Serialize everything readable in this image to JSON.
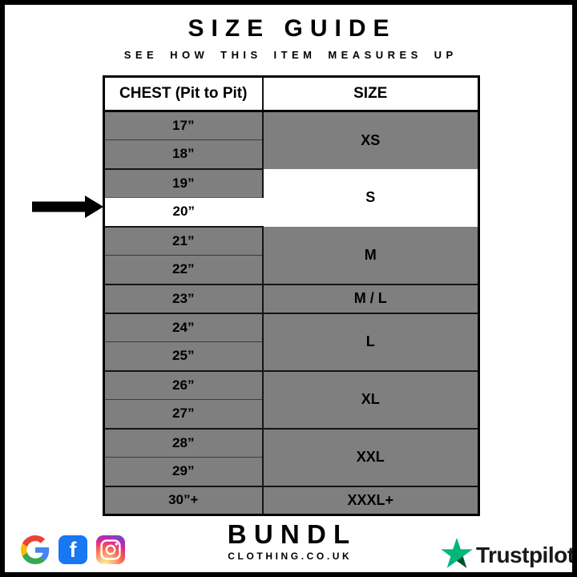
{
  "header": {
    "title": "SIZE GUIDE",
    "subtitle": "SEE HOW THIS ITEM MEASURES UP"
  },
  "table": {
    "columns": [
      "CHEST (Pit to Pit)",
      "SIZE"
    ],
    "highlighted_chest": "20”",
    "highlighted_size": "S",
    "rows": [
      {
        "chest": "17”",
        "size": "XS",
        "span": 2,
        "group_start": true
      },
      {
        "chest": "18”",
        "group_start": false
      },
      {
        "chest": "19”",
        "size": "S",
        "span": 2,
        "group_start": true,
        "size_hl": true
      },
      {
        "chest": "20”",
        "group_start": false,
        "chest_hl": true
      },
      {
        "chest": "21”",
        "size": "M",
        "span": 2,
        "group_start": true,
        "size_no_top": true
      },
      {
        "chest": "22”",
        "group_start": false
      },
      {
        "chest": "23”",
        "size": "M / L",
        "span": 1,
        "group_start": true
      },
      {
        "chest": "24”",
        "size": "L",
        "span": 2,
        "group_start": true
      },
      {
        "chest": "25”",
        "group_start": false
      },
      {
        "chest": "26”",
        "size": "XL",
        "span": 2,
        "group_start": true
      },
      {
        "chest": "27”",
        "group_start": false
      },
      {
        "chest": "28”",
        "size": "XXL",
        "span": 2,
        "group_start": true
      },
      {
        "chest": "29”",
        "group_start": false
      },
      {
        "chest": "30”+",
        "size": "XXXL+",
        "span": 1,
        "group_start": true
      }
    ]
  },
  "footer": {
    "facebook_letter": "f",
    "brand_name": "BUNDL",
    "brand_domain": "CLOTHING.CO.UK",
    "trustpilot_label": "Trustpilot"
  },
  "colors": {
    "row_gray": "#7f7f7f",
    "highlight_white": "#ffffff",
    "frame_black": "#000000",
    "facebook_blue": "#1877F2",
    "instagram_gradient": [
      "#fdf497",
      "#fd5949",
      "#d6249f",
      "#285AEB"
    ],
    "google_red": "#EA4335",
    "google_blue": "#4285F4",
    "google_yellow": "#FBBC05",
    "google_green": "#34A853",
    "trustpilot_green": "#00B67A",
    "trustpilot_dark_green": "#005128",
    "trustpilot_text": "#191919"
  }
}
